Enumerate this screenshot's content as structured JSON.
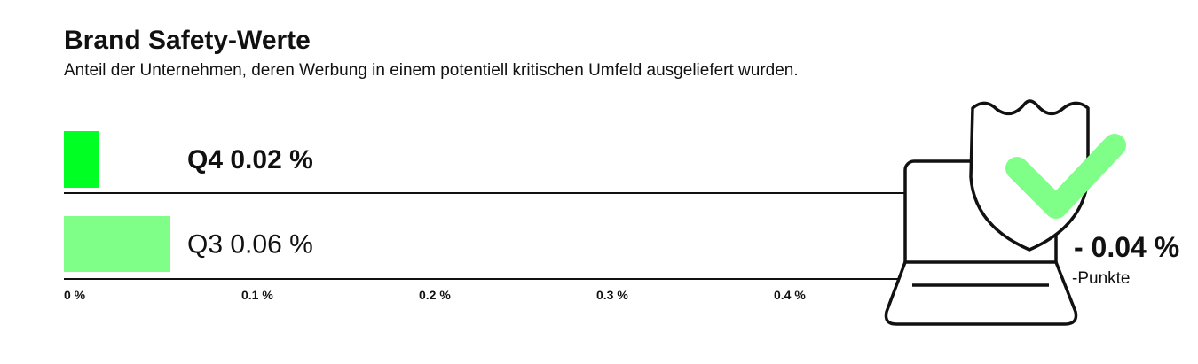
{
  "chart_data": {
    "type": "bar",
    "orientation": "horizontal",
    "title": "Brand Safety-Werte",
    "subtitle": "Anteil der Unternehmen, deren Werbung in einem potentiell kritischen Umfeld ausgeliefert wurden.",
    "categories": [
      "Q4",
      "Q3"
    ],
    "values": [
      0.02,
      0.06
    ],
    "value_labels": [
      "0.02 %",
      "0.06 %"
    ],
    "colors": [
      "#00ff22",
      "#80ff88"
    ],
    "xlim": [
      0,
      0.5
    ],
    "xticks": [
      {
        "value": 0,
        "label": "0 %"
      },
      {
        "value": 0.1,
        "label": "0.1 %"
      },
      {
        "value": 0.2,
        "label": "0.2 %"
      },
      {
        "value": 0.3,
        "label": "0.3 %"
      },
      {
        "value": 0.4,
        "label": "0.4 %"
      }
    ],
    "change": "- 0.04 %",
    "change_unit": "-Punkte"
  }
}
